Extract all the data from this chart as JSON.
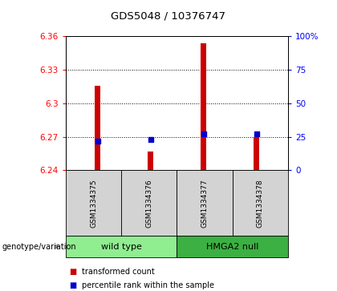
{
  "title": "GDS5048 / 10376747",
  "samples": [
    "GSM1334375",
    "GSM1334376",
    "GSM1334377",
    "GSM1334378"
  ],
  "red_values": [
    6.316,
    6.257,
    6.354,
    6.27
  ],
  "blue_values_pct": [
    22,
    23,
    27,
    27
  ],
  "ylim_left": [
    6.24,
    6.36
  ],
  "ylim_right": [
    0,
    100
  ],
  "yticks_left": [
    6.24,
    6.27,
    6.3,
    6.33,
    6.36
  ],
  "yticks_right": [
    0,
    25,
    50,
    75,
    100
  ],
  "ytick_labels_right": [
    "0",
    "25",
    "50",
    "75",
    "100%"
  ],
  "hlines": [
    6.27,
    6.3,
    6.33
  ],
  "group1_label": "wild type",
  "group2_label": "HMGA2 null",
  "group1_color": "#90EE90",
  "group2_color": "#3CB043",
  "bar_color": "#CC0000",
  "dot_color": "#0000CC",
  "bar_bottom": 6.24,
  "bar_width": 0.12,
  "legend_red": "transformed count",
  "legend_blue": "percentile rank within the sample",
  "genotype_label": "genotype/variation",
  "bg_color": "#d3d3d3"
}
